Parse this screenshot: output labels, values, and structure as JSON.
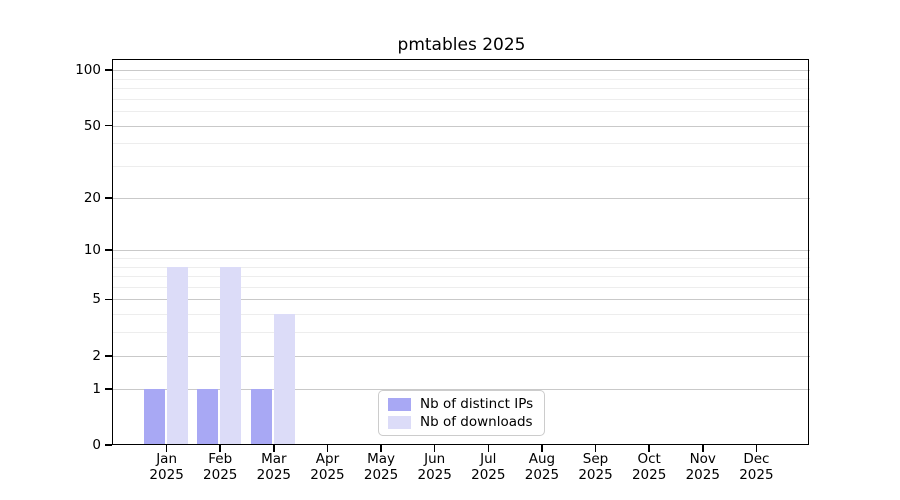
{
  "title": "pmtables 2025",
  "colors": {
    "distinct_ips": "#a8a8f4",
    "downloads": "#dcdcf8",
    "major_grid": "#c9c9c9",
    "minor_grid": "#ededed",
    "spine": "#000000",
    "legend_border": "#cccccc"
  },
  "legend": {
    "items": [
      {
        "label": "Nb of distinct IPs",
        "color": "#a8a8f4"
      },
      {
        "label": "Nb of downloads",
        "color": "#dcdcf8"
      }
    ]
  },
  "chart_data": {
    "type": "bar",
    "title": "pmtables 2025",
    "xlabel": "",
    "ylabel": "",
    "y_scale": "log1p",
    "ylim": [
      0,
      113.5
    ],
    "y_ticks": [
      0,
      1,
      2,
      5,
      10,
      20,
      50,
      100
    ],
    "y_minor_gridlines": [
      3,
      4,
      6,
      7,
      8,
      9,
      30,
      40,
      60,
      70,
      80,
      90
    ],
    "grid": true,
    "legend_position": "lower center",
    "categories": [
      "Jan 2025",
      "Feb 2025",
      "Mar 2025",
      "Apr 2025",
      "May 2025",
      "Jun 2025",
      "Jul 2025",
      "Aug 2025",
      "Sep 2025",
      "Oct 2025",
      "Nov 2025",
      "Dec 2025"
    ],
    "series": [
      {
        "name": "Nb of distinct IPs",
        "color": "#a8a8f4",
        "values": [
          1,
          1,
          1,
          0,
          0,
          0,
          0,
          0,
          0,
          0,
          0,
          0
        ]
      },
      {
        "name": "Nb of downloads",
        "color": "#dcdcf8",
        "values": [
          8,
          8,
          4,
          0,
          0,
          0,
          0,
          0,
          0,
          0,
          0,
          0
        ]
      }
    ]
  }
}
